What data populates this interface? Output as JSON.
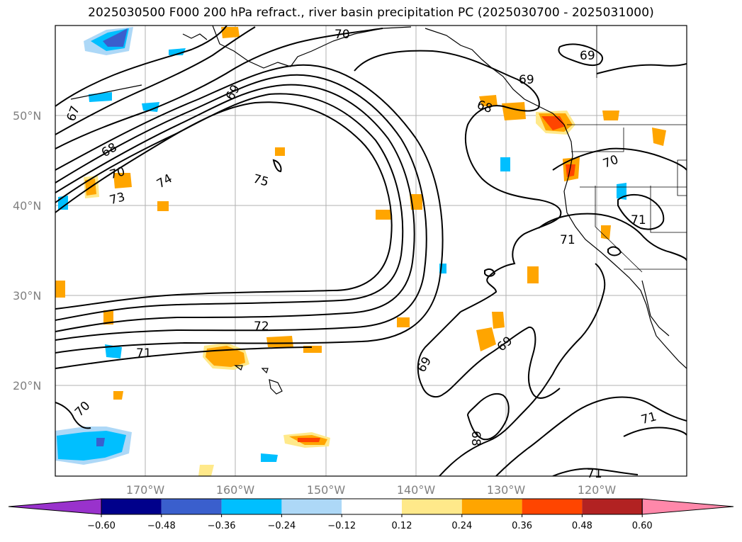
{
  "title": "2025030500 F000 200 hPa refract., river basin precipitation PC (2025030700 - 2025031000)",
  "lat_labels": [
    "50°N",
    "40°N",
    "30°N",
    "20°N"
  ],
  "lon_labels": [
    "170°W",
    "160°W",
    "150°W",
    "140°W",
    "130°W",
    "120°W"
  ],
  "colorbar": {
    "ticks": [
      "−0.60",
      "−0.48",
      "−0.36",
      "−0.24",
      "−0.12",
      "0.12",
      "0.24",
      "0.36",
      "0.48",
      "0.60"
    ],
    "colors": [
      "#9932cc",
      "#00008b",
      "#3a5fcd",
      "#00bfff",
      "#add8f7",
      "#ffffff",
      "#ffe98a",
      "#ffa500",
      "#ff4500",
      "#b22222",
      "#ff88aa"
    ]
  },
  "contour_labels": [
    "70",
    "69",
    "69",
    "69",
    "67",
    "68",
    "68",
    "70",
    "73",
    "74",
    "75",
    "72",
    "71",
    "70",
    "69",
    "69",
    "68",
    "71",
    "70",
    "71",
    "71",
    "71"
  ]
}
